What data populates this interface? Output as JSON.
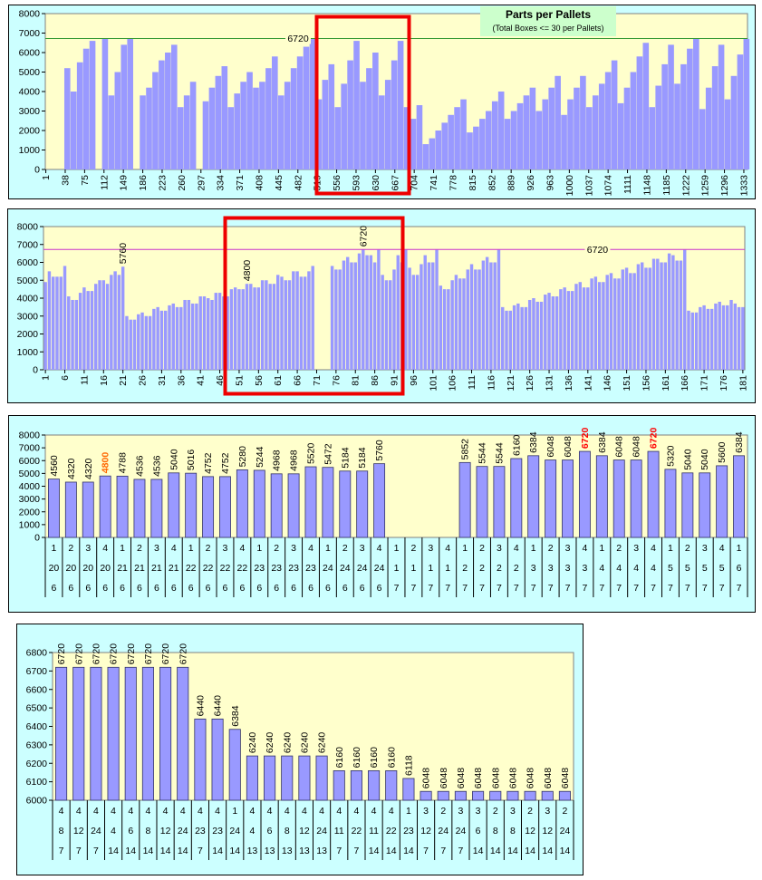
{
  "chart_data": [
    {
      "type": "bar",
      "title": "Parts per Pallets",
      "subtitle": "(Total Boxes <= 30 per Pallets)",
      "x": [
        6,
        18,
        30,
        42,
        54,
        66,
        78,
        90,
        102,
        114,
        126,
        138,
        150,
        162,
        174,
        186,
        198,
        210,
        222,
        234,
        246,
        258,
        270,
        282,
        294,
        306,
        318,
        330,
        342,
        354,
        366,
        378,
        390,
        402,
        414,
        426,
        438,
        450,
        462,
        474,
        486,
        498,
        510,
        522,
        534,
        546,
        558,
        570,
        582,
        594,
        606,
        618,
        630,
        642,
        654,
        666,
        678,
        690,
        702,
        714,
        726,
        738,
        750,
        762,
        774,
        786,
        798,
        810,
        822,
        834,
        846,
        858,
        870,
        882,
        894,
        906,
        918,
        930,
        942,
        954,
        966,
        978,
        990,
        1002,
        1014,
        1026,
        1038,
        1050,
        1062,
        1074,
        1086,
        1098,
        1110,
        1122,
        1134,
        1146,
        1158,
        1170,
        1182,
        1194,
        1206,
        1218,
        1230,
        1242,
        1254,
        1266,
        1278,
        1290,
        1302,
        1314,
        1326,
        1338
      ],
      "values": [
        0,
        0,
        0,
        5200,
        4000,
        5500,
        6200,
        6600,
        0,
        6700,
        3800,
        5000,
        6400,
        6700,
        0,
        3800,
        4200,
        5000,
        5600,
        6000,
        6400,
        3200,
        3800,
        4500,
        0,
        3500,
        4200,
        4800,
        5300,
        3200,
        3900,
        4500,
        5000,
        4200,
        4500,
        5200,
        5800,
        3800,
        4500,
        5200,
        5800,
        6300,
        6700,
        3600,
        4600,
        5400,
        3200,
        4400,
        5600,
        6600,
        4500,
        5200,
        6000,
        3800,
        4600,
        5600,
        6600,
        3200,
        2600,
        3300,
        1300,
        1600,
        2000,
        2400,
        2800,
        3200,
        3600,
        1900,
        2200,
        2600,
        3000,
        3500,
        4000,
        2600,
        3000,
        3400,
        3800,
        4200,
        3000,
        3600,
        4200,
        4800,
        2800,
        3600,
        4200,
        4800,
        3200,
        3800,
        4400,
        5000,
        5600,
        3400,
        4200,
        5000,
        5800,
        6500,
        3200,
        4300,
        5400,
        6400,
        4400,
        5400,
        6200,
        6700,
        3100,
        4200,
        5300,
        6400,
        3600,
        4800,
        5900,
        6700
      ],
      "xlim": [
        0,
        1340
      ],
      "xticks": [
        1,
        38,
        75,
        112,
        149,
        186,
        223,
        260,
        297,
        334,
        371,
        408,
        445,
        482,
        519,
        556,
        593,
        630,
        667,
        704,
        741,
        778,
        815,
        852,
        889,
        926,
        963,
        1000,
        1037,
        1074,
        1111,
        1148,
        1185,
        1222,
        1259,
        1296,
        1333
      ],
      "ylim": [
        0,
        8000
      ],
      "yticks": [
        0,
        1000,
        2000,
        3000,
        4000,
        5000,
        6000,
        7000,
        8000
      ],
      "color": "#9999ff",
      "ref_line": 6720,
      "ref_color": "#339933"
    },
    {
      "type": "bar",
      "x": [
        1,
        2,
        3,
        4,
        5,
        6,
        7,
        8,
        9,
        10,
        11,
        12,
        13,
        14,
        15,
        16,
        17,
        18,
        19,
        20,
        21,
        22,
        23,
        24,
        25,
        26,
        27,
        28,
        29,
        30,
        31,
        32,
        33,
        34,
        35,
        36,
        37,
        38,
        39,
        40,
        41,
        42,
        43,
        44,
        45,
        46,
        47,
        48,
        49,
        50,
        51,
        52,
        53,
        54,
        55,
        56,
        57,
        58,
        59,
        60,
        61,
        62,
        63,
        64,
        65,
        66,
        67,
        68,
        69,
        70,
        71,
        72,
        73,
        74,
        75,
        76,
        77,
        78,
        79,
        80,
        81,
        82,
        83,
        84,
        85,
        86,
        87,
        88,
        89,
        90,
        91,
        92,
        93,
        94,
        95,
        96,
        97,
        98,
        99,
        100,
        101,
        102,
        103,
        104,
        105,
        106,
        107,
        108,
        109,
        110,
        111,
        112,
        113,
        114,
        115,
        116,
        117,
        118,
        119,
        120,
        121,
        122,
        123,
        124,
        125,
        126,
        127,
        128,
        129,
        130,
        131,
        132,
        133,
        134,
        135,
        136,
        137,
        138,
        139,
        140,
        141,
        142,
        143,
        144,
        145,
        146,
        147,
        148,
        149,
        150,
        151,
        152,
        153,
        154,
        155,
        156,
        157,
        158,
        159,
        160,
        161,
        162,
        163,
        164,
        165,
        166,
        167,
        168,
        169,
        170,
        171,
        172,
        173,
        174,
        175,
        176,
        177,
        178,
        179,
        180,
        181
      ],
      "values": [
        4900,
        5500,
        5200,
        5200,
        5200,
        5800,
        4100,
        3900,
        3900,
        4300,
        4600,
        4400,
        4400,
        4800,
        5000,
        5000,
        4800,
        5300,
        5500,
        5300,
        5760,
        3000,
        2800,
        2800,
        3100,
        3200,
        3000,
        3000,
        3400,
        3500,
        3300,
        3300,
        3600,
        3700,
        3500,
        3500,
        3900,
        3900,
        3700,
        3700,
        4100,
        4100,
        4000,
        3900,
        4300,
        4300,
        4100,
        4100,
        4500,
        4600,
        4500,
        4500,
        4800,
        4800,
        4600,
        4600,
        5000,
        5000,
        4800,
        4800,
        5300,
        5200,
        5000,
        5000,
        5500,
        5500,
        5200,
        5200,
        5500,
        5800,
        0,
        0,
        0,
        0,
        5800,
        5600,
        5600,
        6100,
        6300,
        6000,
        6000,
        6500,
        6720,
        6400,
        6400,
        6000,
        6700,
        5300,
        5000,
        5000,
        5600,
        6400,
        6000,
        6700,
        5700,
        5300,
        5300,
        5900,
        6400,
        6000,
        6000,
        6700,
        4700,
        4500,
        4500,
        5000,
        5300,
        5100,
        5100,
        5600,
        5900,
        5600,
        5600,
        6100,
        6300,
        6000,
        6000,
        6700,
        3500,
        3300,
        3300,
        3600,
        3700,
        3500,
        3500,
        3900,
        4000,
        3800,
        3800,
        4200,
        4300,
        4100,
        4100,
        4500,
        4600,
        4400,
        4400,
        4800,
        4900,
        4600,
        4600,
        5100,
        5200,
        4900,
        4900,
        5300,
        5400,
        5100,
        5100,
        5600,
        5700,
        5400,
        5400,
        5900,
        6000,
        5700,
        5700,
        6200,
        6200,
        6000,
        6000,
        6500,
        6400,
        6100,
        6100,
        6700,
        3300,
        3200,
        3200,
        3500,
        3600,
        3400,
        3400,
        3700,
        3800,
        3600,
        3600,
        3900,
        3700,
        3500,
        3500
      ],
      "labels_at": [
        21,
        53,
        83
      ],
      "xlim": [
        0.5,
        181.5
      ],
      "xticks": [
        1,
        6,
        11,
        16,
        21,
        26,
        31,
        36,
        41,
        46,
        51,
        56,
        61,
        66,
        71,
        76,
        81,
        86,
        91,
        96,
        101,
        106,
        111,
        116,
        121,
        126,
        131,
        136,
        141,
        146,
        151,
        156,
        161,
        166,
        171,
        176,
        181
      ],
      "ylim": [
        0,
        8000
      ],
      "yticks": [
        0,
        1000,
        2000,
        3000,
        4000,
        5000,
        6000,
        7000,
        8000
      ],
      "color": "#9999ff",
      "ref_line": 6720,
      "ref_color": "#cc33cc"
    },
    {
      "type": "bar",
      "categories": [
        [
          "1",
          "20",
          "6"
        ],
        [
          "2",
          "20",
          "6"
        ],
        [
          "3",
          "20",
          "6"
        ],
        [
          "4",
          "20",
          "6"
        ],
        [
          "1",
          "21",
          "6"
        ],
        [
          "2",
          "21",
          "6"
        ],
        [
          "3",
          "21",
          "6"
        ],
        [
          "4",
          "21",
          "6"
        ],
        [
          "1",
          "22",
          "6"
        ],
        [
          "2",
          "22",
          "6"
        ],
        [
          "3",
          "22",
          "6"
        ],
        [
          "4",
          "22",
          "6"
        ],
        [
          "1",
          "23",
          "6"
        ],
        [
          "2",
          "23",
          "6"
        ],
        [
          "3",
          "23",
          "6"
        ],
        [
          "4",
          "23",
          "6"
        ],
        [
          "1",
          "24",
          "6"
        ],
        [
          "2",
          "24",
          "6"
        ],
        [
          "3",
          "24",
          "6"
        ],
        [
          "4",
          "24",
          "6"
        ],
        [
          "1",
          "1",
          "7"
        ],
        [
          "2",
          "1",
          "7"
        ],
        [
          "3",
          "1",
          "7"
        ],
        [
          "4",
          "1",
          "7"
        ],
        [
          "1",
          "2",
          "7"
        ],
        [
          "2",
          "2",
          "7"
        ],
        [
          "3",
          "2",
          "7"
        ],
        [
          "4",
          "2",
          "7"
        ],
        [
          "1",
          "3",
          "7"
        ],
        [
          "2",
          "3",
          "7"
        ],
        [
          "3",
          "3",
          "7"
        ],
        [
          "4",
          "3",
          "7"
        ],
        [
          "1",
          "4",
          "7"
        ],
        [
          "2",
          "4",
          "7"
        ],
        [
          "3",
          "4",
          "7"
        ],
        [
          "4",
          "4",
          "7"
        ],
        [
          "1",
          "5",
          "7"
        ],
        [
          "2",
          "5",
          "7"
        ],
        [
          "3",
          "5",
          "7"
        ],
        [
          "4",
          "5",
          "7"
        ],
        [
          "1",
          "6",
          "7"
        ]
      ],
      "values": [
        4560,
        4320,
        4320,
        4800,
        4788,
        4536,
        4536,
        5040,
        5016,
        4752,
        4752,
        5280,
        5244,
        4968,
        4968,
        5520,
        5472,
        5184,
        5184,
        5760,
        null,
        null,
        null,
        null,
        5852,
        5544,
        5544,
        6160,
        6384,
        6048,
        6048,
        6720,
        6384,
        6048,
        6048,
        6720,
        5320,
        5040,
        5040,
        5600,
        6384
      ],
      "value_label_colors": [
        "#000000",
        "#000000",
        "#000000",
        "#ff6600",
        "#000000",
        "#000000",
        "#000000",
        "#000000",
        "#000000",
        "#000000",
        "#000000",
        "#000000",
        "#000000",
        "#000000",
        "#000000",
        "#000000",
        "#000000",
        "#000000",
        "#000000",
        "#000000",
        "#000000",
        "#000000",
        "#000000",
        "#000000",
        "#000000",
        "#000000",
        "#000000",
        "#000000",
        "#000000",
        "#000000",
        "#000000",
        "#ff0000",
        "#000000",
        "#000000",
        "#000000",
        "#ff0000",
        "#000000",
        "#000000",
        "#000000",
        "#000000",
        "#000000"
      ],
      "ylim": [
        0,
        8000
      ],
      "yticks": [
        0,
        1000,
        2000,
        3000,
        4000,
        5000,
        6000,
        7000,
        8000
      ],
      "color": "#9999ff"
    },
    {
      "type": "bar",
      "categories": [
        [
          "4",
          "8",
          "7"
        ],
        [
          "4",
          "12",
          "7"
        ],
        [
          "4",
          "24",
          "7"
        ],
        [
          "4",
          "4",
          "14"
        ],
        [
          "4",
          "6",
          "14"
        ],
        [
          "4",
          "8",
          "14"
        ],
        [
          "4",
          "12",
          "14"
        ],
        [
          "4",
          "24",
          "14"
        ],
        [
          "4",
          "23",
          "7"
        ],
        [
          "4",
          "23",
          "14"
        ],
        [
          "1",
          "24",
          "14"
        ],
        [
          "4",
          "4",
          "13"
        ],
        [
          "4",
          "6",
          "13"
        ],
        [
          "4",
          "8",
          "13"
        ],
        [
          "4",
          "12",
          "13"
        ],
        [
          "4",
          "24",
          "13"
        ],
        [
          "4",
          "11",
          "7"
        ],
        [
          "4",
          "22",
          "7"
        ],
        [
          "4",
          "11",
          "14"
        ],
        [
          "4",
          "22",
          "14"
        ],
        [
          "1",
          "23",
          "14"
        ],
        [
          "3",
          "12",
          "7"
        ],
        [
          "2",
          "24",
          "7"
        ],
        [
          "3",
          "24",
          "7"
        ],
        [
          "3",
          "6",
          "14"
        ],
        [
          "2",
          "8",
          "14"
        ],
        [
          "3",
          "8",
          "14"
        ],
        [
          "2",
          "12",
          "14"
        ],
        [
          "3",
          "12",
          "14"
        ],
        [
          "2",
          "24",
          "14"
        ]
      ],
      "values": [
        6720,
        6720,
        6720,
        6720,
        6720,
        6720,
        6720,
        6720,
        6440,
        6440,
        6384,
        6240,
        6240,
        6240,
        6240,
        6240,
        6160,
        6160,
        6160,
        6160,
        6118,
        6048,
        6048,
        6048,
        6048,
        6048,
        6048,
        6048,
        6048,
        6048
      ],
      "ylim": [
        6000,
        6800
      ],
      "yticks": [
        6000,
        6100,
        6200,
        6300,
        6400,
        6500,
        6600,
        6700,
        6800
      ],
      "color": "#9999ff"
    }
  ]
}
